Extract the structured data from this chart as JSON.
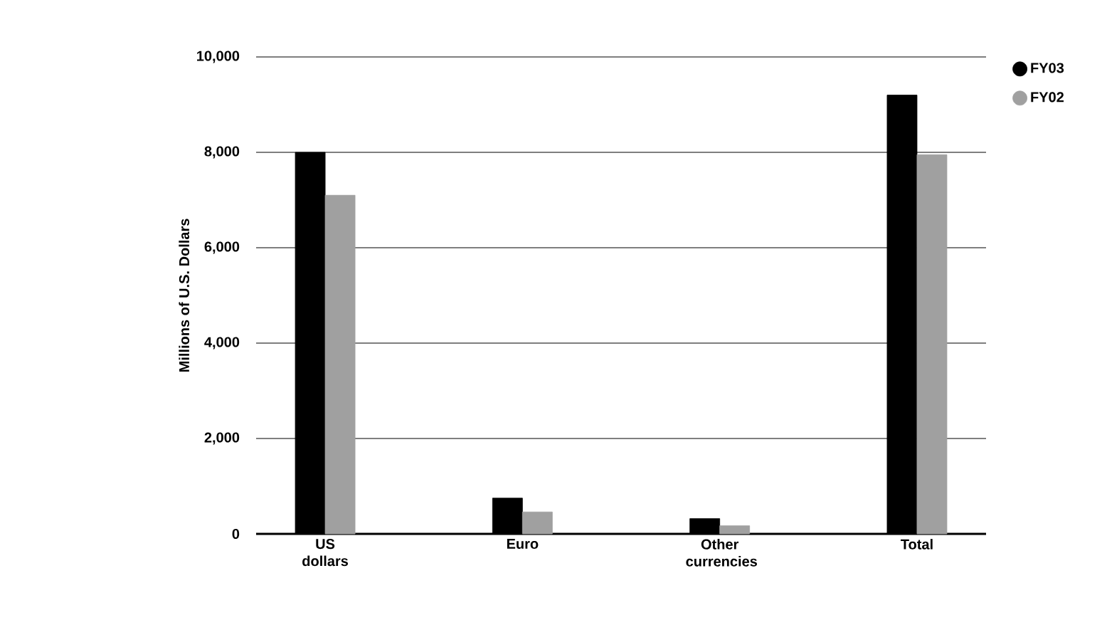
{
  "chart_data": {
    "type": "bar",
    "ylabel": "Millions of U.S. Dollars",
    "categories": [
      "US dollars",
      "Euro",
      "Other currencies",
      "Total"
    ],
    "series": [
      {
        "name": "FY03",
        "color": "#000000",
        "values": [
          8000,
          750,
          320,
          9200
        ]
      },
      {
        "name": "FY02",
        "color": "#a0a0a0",
        "values": [
          7100,
          460,
          170,
          7950
        ]
      }
    ],
    "ylim": [
      0,
      10000
    ],
    "yticks": [
      {
        "value": 0,
        "label": "0"
      },
      {
        "value": 2000,
        "label": "2,000"
      },
      {
        "value": 4000,
        "label": "4,000"
      },
      {
        "value": 6000,
        "label": "6,000"
      },
      {
        "value": 8000,
        "label": "8,000"
      },
      {
        "value": 10000,
        "label": "10,000"
      }
    ],
    "grid": "y",
    "legend": "top right",
    "marker": "circle"
  }
}
